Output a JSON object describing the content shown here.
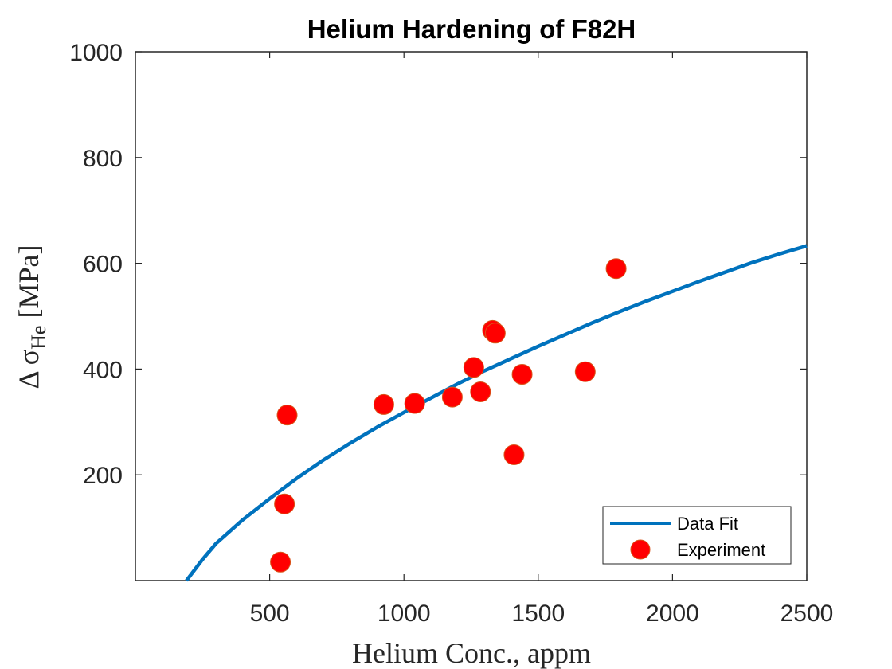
{
  "chart_data": {
    "type": "scatter",
    "title": "Helium Hardening of F82H",
    "xlabel": "Helium Conc., appm",
    "ylabel": {
      "prefix": "Δ σ",
      "subscript": "He",
      "suffix": " [MPa]"
    },
    "xlim": [
      0,
      2500
    ],
    "ylim": [
      0,
      1000
    ],
    "xticks": [
      500,
      1000,
      1500,
      2000,
      2500
    ],
    "yticks": [
      200,
      400,
      600,
      800,
      1000
    ],
    "grid": false,
    "legend_position": "bottom-right",
    "series": [
      {
        "name": "Data Fit",
        "kind": "line",
        "color": "#0072BD",
        "x": [
          190,
          250,
          300,
          400,
          500,
          600,
          700,
          800,
          900,
          1000,
          1100,
          1200,
          1300,
          1400,
          1500,
          1600,
          1700,
          1800,
          1900,
          2000,
          2100,
          2200,
          2300,
          2400,
          2500
        ],
        "y": [
          0,
          40,
          70,
          115,
          155,
          193,
          228,
          260,
          290,
          318,
          345,
          372,
          397,
          420,
          443,
          465,
          487,
          508,
          528,
          547,
          566,
          584,
          602,
          618,
          633
        ]
      },
      {
        "name": "Experiment",
        "kind": "scatter",
        "color": "#FF0000",
        "edge_color": "#D95319",
        "x": [
          540,
          555,
          565,
          925,
          1040,
          1180,
          1260,
          1285,
          1330,
          1340,
          1410,
          1440,
          1675,
          1790
        ],
        "y": [
          35,
          145,
          313,
          333,
          335,
          347,
          403,
          357,
          473,
          468,
          238,
          390,
          395,
          590
        ]
      }
    ]
  }
}
